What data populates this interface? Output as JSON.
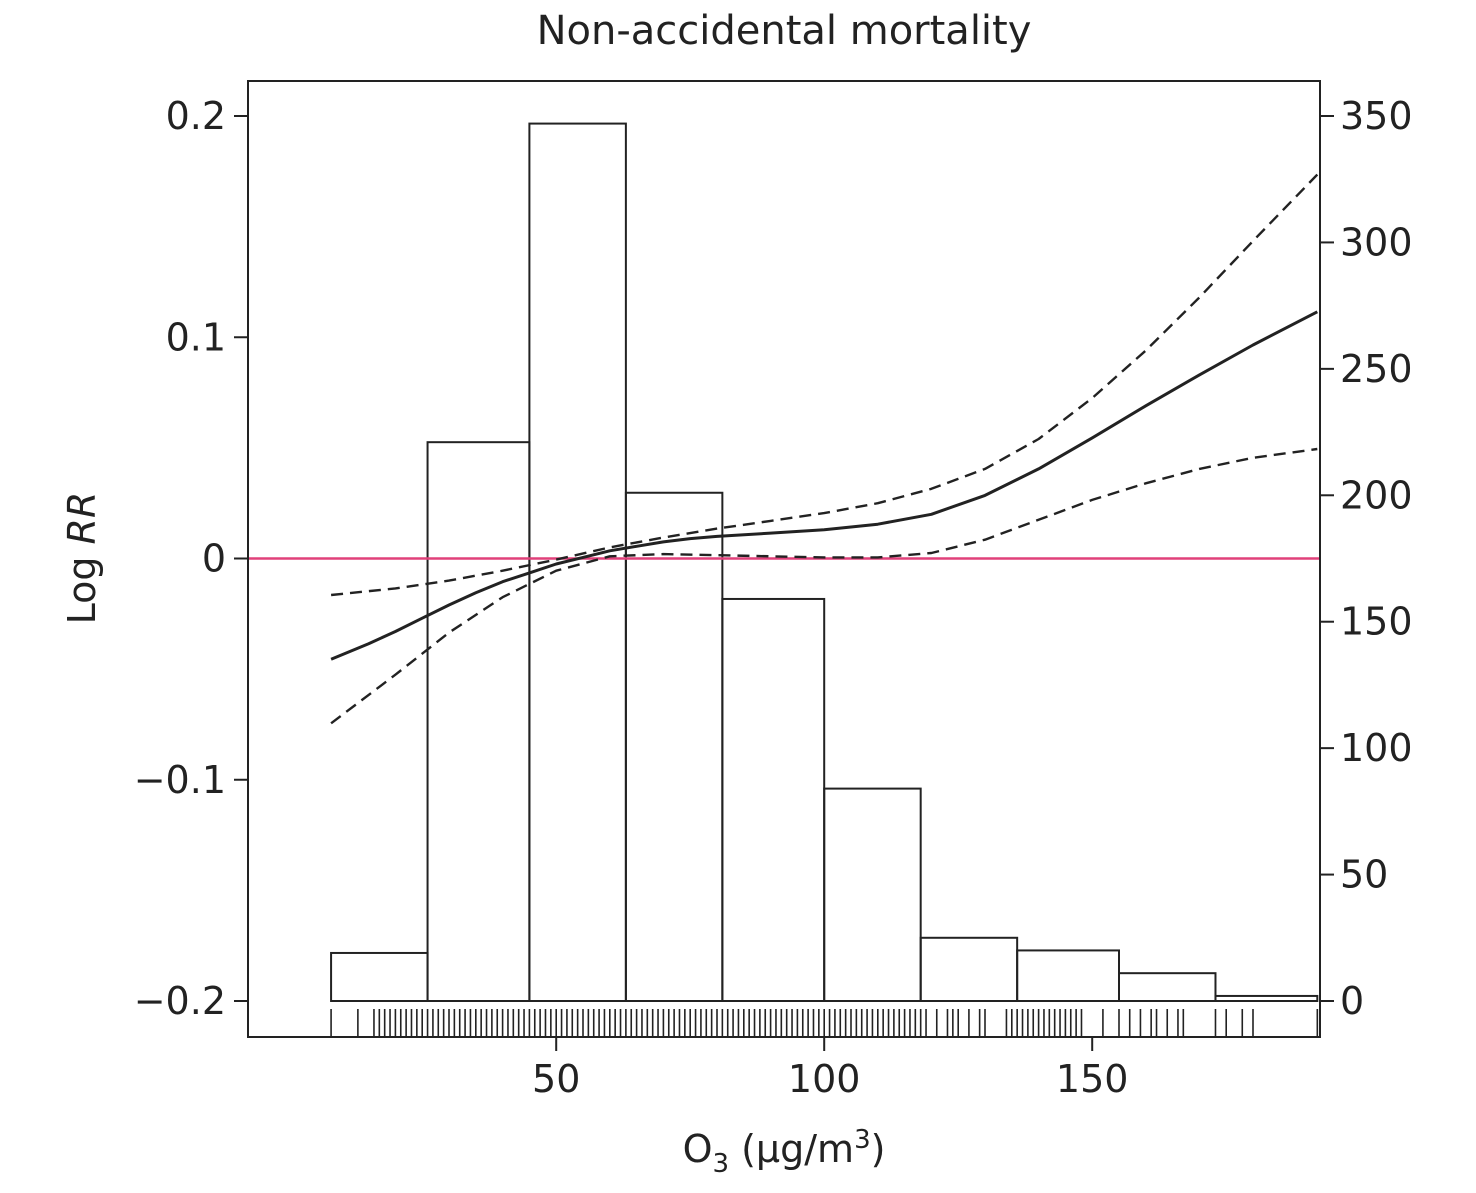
{
  "chart_data": {
    "type": "line",
    "title": "Non-accidental mortality",
    "ylabel": {
      "prefix": "Log ",
      "italic": "RR"
    },
    "xlabel": {
      "main": "O",
      "sub": "3",
      "rest": " (μg/m",
      "sup": "3",
      "end": ")"
    },
    "xlim": [
      -7.5,
      192.5
    ],
    "xticks": [
      50,
      100,
      150
    ],
    "xtick_labels": [
      "50",
      "100",
      "150"
    ],
    "ylim_left": [
      -0.2,
      0.2
    ],
    "yticks_left": [
      -0.2,
      -0.1,
      0,
      0.1,
      0.2
    ],
    "ytick_labels_left": [
      "−0.2",
      "−0.1",
      "0",
      "0.1",
      "0.2"
    ],
    "ylim_right": [
      0,
      350
    ],
    "yticks_right": [
      0,
      50,
      100,
      150,
      200,
      250,
      300,
      350
    ],
    "ytick_labels_right": [
      "0",
      "50",
      "100",
      "150",
      "200",
      "250",
      "300",
      "350"
    ],
    "reference_line": {
      "y": 0,
      "color": "#e0407a"
    },
    "histogram": {
      "bins": [
        {
          "x0": 8,
          "x1": 26,
          "count": 19
        },
        {
          "x0": 26,
          "x1": 45,
          "count": 221
        },
        {
          "x0": 45,
          "x1": 63,
          "count": 347
        },
        {
          "x0": 63,
          "x1": 81,
          "count": 201
        },
        {
          "x0": 81,
          "x1": 100,
          "count": 159
        },
        {
          "x0": 100,
          "x1": 118,
          "count": 84
        },
        {
          "x0": 118,
          "x1": 136,
          "count": 25
        },
        {
          "x0": 136,
          "x1": 155,
          "count": 20
        },
        {
          "x0": 155,
          "x1": 173,
          "count": 11
        },
        {
          "x0": 173,
          "x1": 192,
          "count": 2
        }
      ]
    },
    "series": [
      {
        "style": "solid",
        "x": [
          8,
          15,
          20,
          25,
          30,
          35,
          40,
          45,
          50,
          55,
          60,
          65,
          70,
          75,
          80,
          90,
          100,
          110,
          120,
          130,
          140,
          150,
          160,
          170,
          180,
          192
        ],
        "y": [
          -0.0455,
          -0.0385,
          -0.033,
          -0.027,
          -0.021,
          -0.0155,
          -0.0105,
          -0.0065,
          -0.0025,
          0.0005,
          0.0035,
          0.0055,
          0.0075,
          0.009,
          0.01,
          0.0115,
          0.013,
          0.0155,
          0.02,
          0.0285,
          0.0405,
          0.0545,
          0.069,
          0.083,
          0.0965,
          0.1115
        ]
      },
      {
        "style": "dashed",
        "x": [
          8,
          20,
          30,
          40,
          50,
          60,
          70,
          80,
          90,
          100,
          110,
          120,
          130,
          140,
          150,
          160,
          170,
          180,
          192
        ],
        "y": [
          -0.0165,
          -0.0135,
          -0.01,
          -0.0055,
          -0.0005,
          0.005,
          0.0095,
          0.0135,
          0.017,
          0.0205,
          0.025,
          0.0315,
          0.0405,
          0.054,
          0.0725,
          0.094,
          0.118,
          0.1435,
          0.1735
        ]
      },
      {
        "style": "dashed",
        "x": [
          8,
          20,
          30,
          40,
          50,
          60,
          70,
          80,
          90,
          100,
          110,
          120,
          130,
          140,
          150,
          160,
          170,
          180,
          192
        ],
        "y": [
          -0.0745,
          -0.0525,
          -0.0335,
          -0.0175,
          -0.0055,
          0.001,
          0.002,
          0.0015,
          0.001,
          0.0005,
          0.0005,
          0.0025,
          0.0085,
          0.0175,
          0.0265,
          0.034,
          0.0405,
          0.0455,
          0.0495
        ]
      }
    ],
    "rug": [
      8,
      13,
      16,
      17,
      18,
      19,
      20,
      21,
      22,
      23,
      24,
      25,
      26,
      27,
      28,
      29,
      30,
      31,
      32,
      33,
      34,
      35,
      36,
      37,
      38,
      39,
      40,
      41,
      42,
      43,
      44,
      45,
      46,
      47,
      48,
      49,
      50,
      51,
      52,
      53,
      54,
      55,
      56,
      57,
      58,
      59,
      60,
      61,
      62,
      63,
      64,
      65,
      66,
      67,
      68,
      69,
      70,
      71,
      72,
      73,
      74,
      75,
      76,
      77,
      78,
      79,
      80,
      81,
      82,
      83,
      84,
      85,
      86,
      87,
      88,
      89,
      90,
      91,
      92,
      93,
      94,
      95,
      96,
      97,
      98,
      99,
      100,
      101,
      102,
      103,
      104,
      105,
      106,
      107,
      108,
      109,
      110,
      111,
      112,
      113,
      114,
      115,
      116,
      117,
      118,
      119,
      121,
      123,
      124,
      125,
      127,
      129,
      130,
      134,
      135,
      136,
      137,
      138,
      139,
      140,
      141,
      142,
      143,
      144,
      145,
      146,
      147,
      148,
      152,
      155,
      157,
      159,
      161,
      162,
      164,
      166,
      167,
      173,
      175,
      178,
      180,
      192
    ]
  }
}
